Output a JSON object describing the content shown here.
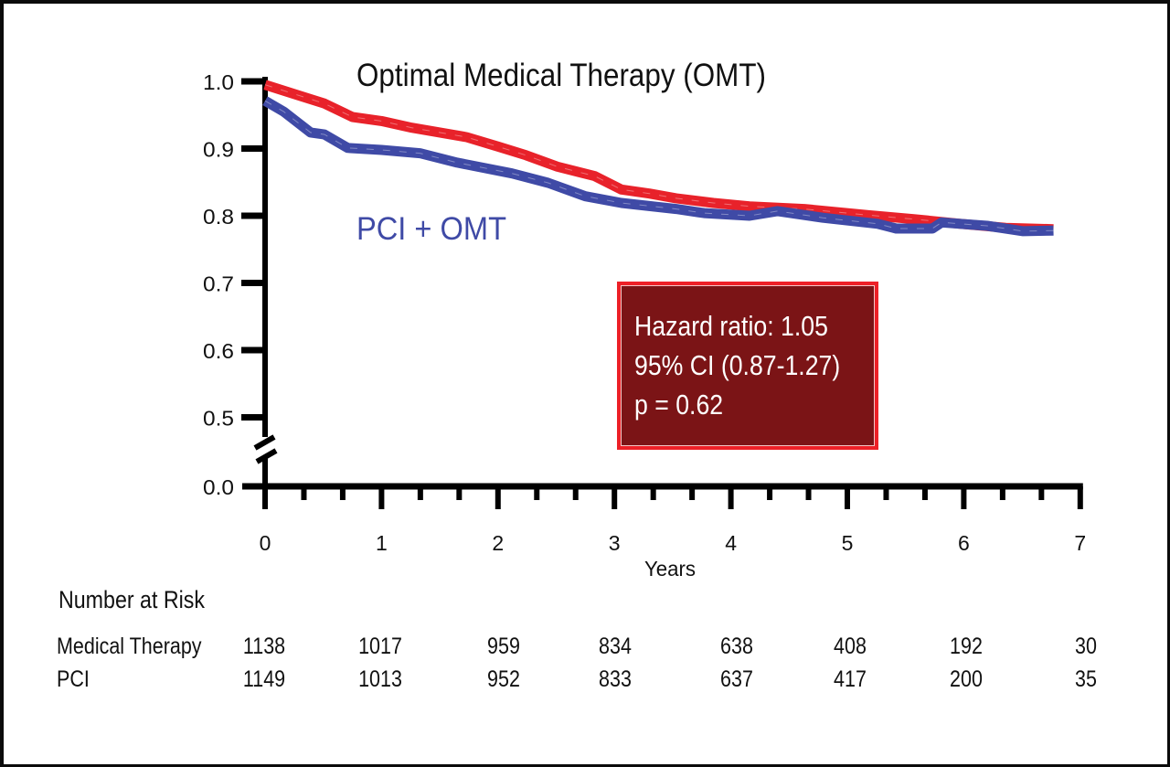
{
  "chart_data": {
    "type": "line",
    "subtype": "kaplan-meier",
    "title": "Optimal Medical Therapy (OMT)",
    "xlabel": "Years",
    "ylabel": "",
    "xlim": [
      0,
      7
    ],
    "ylim": [
      0.0,
      1.0
    ],
    "y_axis_break": [
      0.0,
      0.5
    ],
    "xticks": [
      "0",
      "1",
      "2",
      "3",
      "4",
      "5",
      "6",
      "7"
    ],
    "x_minor_ticks_per_year": 3,
    "yticks": [
      "1.0",
      "0.9",
      "0.8",
      "0.7",
      "0.6",
      "0.5",
      "0.0"
    ],
    "grid": false,
    "series": [
      {
        "name": "Optimal Medical Therapy (OMT)",
        "color": "#e8222a",
        "x": [
          0,
          0.31,
          0.51,
          0.75,
          1.0,
          1.26,
          1.73,
          2.0,
          2.24,
          2.51,
          2.83,
          3.06,
          3.3,
          3.53,
          3.85,
          4.16,
          4.63,
          5.18,
          5.57,
          5.97,
          6.36,
          6.77
        ],
        "y": [
          0.995,
          0.978,
          0.967,
          0.947,
          0.941,
          0.931,
          0.917,
          0.903,
          0.89,
          0.873,
          0.859,
          0.839,
          0.833,
          0.826,
          0.819,
          0.814,
          0.81,
          0.801,
          0.795,
          0.788,
          0.782,
          0.78
        ]
      },
      {
        "name": "PCI + OMT",
        "color": "#3f4aa6",
        "x": [
          0,
          0.16,
          0.39,
          0.51,
          0.71,
          1.0,
          1.33,
          1.65,
          2.12,
          2.43,
          2.75,
          3.06,
          3.53,
          3.77,
          4.16,
          4.4,
          4.79,
          5.26,
          5.42,
          5.73,
          5.81,
          6.2,
          6.51,
          6.77
        ],
        "y": [
          0.971,
          0.955,
          0.924,
          0.921,
          0.901,
          0.898,
          0.893,
          0.879,
          0.863,
          0.849,
          0.829,
          0.819,
          0.81,
          0.804,
          0.8,
          0.807,
          0.797,
          0.788,
          0.781,
          0.781,
          0.79,
          0.785,
          0.777,
          0.778
        ]
      }
    ],
    "annotations": [
      {
        "text": "Optimal Medical Therapy (OMT)",
        "color": "#111111",
        "role": "series-label-red"
      },
      {
        "text": "PCI + OMT",
        "color": "#3f4aa6",
        "role": "series-label-blue"
      }
    ],
    "stats_box": {
      "lines": [
        "Hazard ratio: 1.05",
        "95% CI (0.87-1.27)",
        "p = 0.62"
      ],
      "border_color": "#ed2027",
      "fill_color": "#7b1416",
      "text_color": "#ffffff"
    },
    "risk_table": {
      "title": "Number at Risk",
      "timepoints": [
        0,
        1,
        2,
        3,
        4,
        5,
        6,
        7
      ],
      "rows": [
        {
          "label": "Medical Therapy",
          "values": [
            "1138",
            "1017",
            "959",
            "834",
            "638",
            "408",
            "192",
            "30"
          ]
        },
        {
          "label": "PCI",
          "values": [
            "1149",
            "1013",
            "952",
            "833",
            "637",
            "417",
            "200",
            "35"
          ]
        }
      ]
    }
  }
}
